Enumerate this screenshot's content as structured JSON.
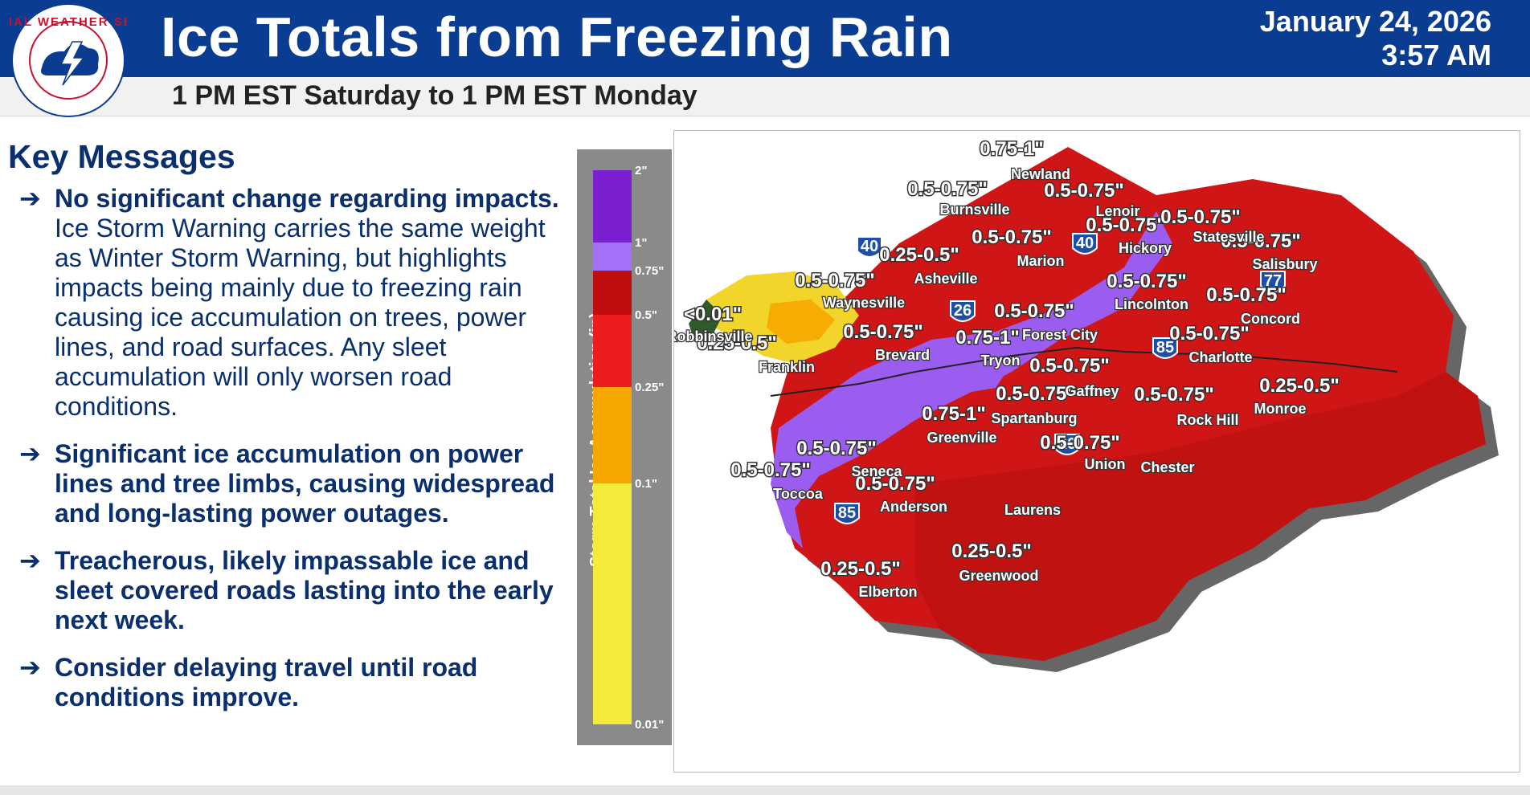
{
  "header": {
    "title": "Ice Totals from Freezing Rain",
    "date": "January 24, 2026",
    "time": "3:57 AM",
    "subtitle": "1 PM EST Saturday to 1 PM EST Monday",
    "logo_text": "NATIONAL WEATHER SERVICE"
  },
  "key_messages": {
    "title": "Key Messages",
    "items": [
      {
        "bold": "No significant change regarding impacts.",
        "text": " Ice Storm Warning carries the same weight as Winter Storm Warning, but highlights impacts being mainly due to freezing rain causing ice accumulation on trees, power lines, and road surfaces. Any sleet accumulation will only worsen road conditions."
      },
      {
        "bold": "Significant ice accumulation on power lines and tree limbs, causing widespread and long-lasting power outages.",
        "text": ""
      },
      {
        "bold": "Treacherous, likely impassable ice and sleet covered roads lasting into the early next week.",
        "text": ""
      },
      {
        "bold": "Consider delaying travel until road conditions improve.",
        "text": ""
      }
    ]
  },
  "legend": {
    "title": "Storm Total Ice Accumulation (in)",
    "ticks": [
      "2\"",
      "1\"",
      "0.75\"",
      "0.5\"",
      "0.25\"",
      "0.1\"",
      "0.01\""
    ],
    "colors": {
      "2-1": "#7b1fd1",
      "1-0.75": "#a371f7",
      "0.75-0.5": "#c00d0d",
      "0.5-0.25": "#ee1c1c",
      "0.25-0.1": "#f7a700",
      "0.1-0.01": "#f4ea3a"
    }
  },
  "map": {
    "amounts": [
      "0.75-1\"",
      "0.5-0.75\"",
      "0.5-0.75\"",
      "0.5-0.75\"",
      "0.5-0.75\"",
      "0.5-0.75\"",
      "0.25-0.5\"",
      "0.5-0.75\"",
      "0.5-0.75\"",
      "0.5-0.75\"",
      "0.5-0.75\"",
      "<0.01\"",
      "0.25-0.5\"",
      "0.5-0.75\"",
      "0.75-1\"",
      "0.5-0.75\"",
      "0.5-0.75\"",
      "0.5-0.75\"",
      "0.25-0.5\"",
      "0.75-1\"",
      "0.5-0.75\"",
      "0.5-0.75\"",
      "0.5-0.75\"",
      "0.5-0.75\"",
      "0.5-0.75\"",
      "0.5-0.75\"",
      "0.25-0.5\"",
      "0.25-0.5\""
    ],
    "cities": [
      "Newland",
      "Burnsville",
      "Lenoir",
      "Statesville",
      "Hickory",
      "Marion",
      "Salisbury",
      "Asheville",
      "Waynesville",
      "Lincolnton",
      "Concord",
      "Robbinsville",
      "Forest City",
      "Brevard",
      "Tryon",
      "Charlotte",
      "Franklin",
      "Gaffney",
      "Monroe",
      "Spartanburg",
      "Rock Hill",
      "Greenville",
      "Union",
      "Chester",
      "Seneca",
      "Toccoa",
      "Anderson",
      "Laurens",
      "Greenwood",
      "Elberton"
    ],
    "interstates": [
      "40",
      "40",
      "26",
      "77",
      "85",
      "26",
      "85"
    ]
  }
}
